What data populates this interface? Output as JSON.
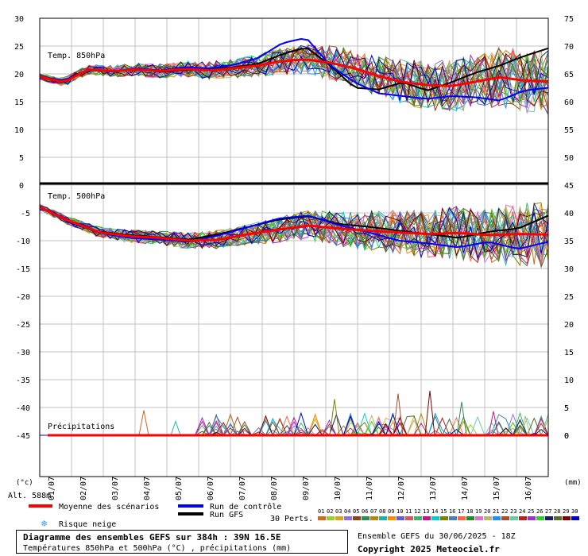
{
  "chart_data": [
    {
      "panel": "850hPa",
      "type": "line",
      "label": "Temp. 850hPa",
      "y_left_ticks": [
        30,
        25,
        20,
        15,
        10,
        5,
        0
      ],
      "y_right_ticks": [
        75,
        70,
        65,
        60,
        55,
        50
      ],
      "ylim": [
        0,
        30
      ],
      "mean_series": [
        19.5,
        18.5,
        20.8,
        20.5,
        20.8,
        20.5,
        20.9,
        20.6,
        21,
        21.5,
        22.3,
        22.6,
        22,
        21,
        19.6,
        18.5,
        18,
        17.8,
        18.6,
        19.4,
        18.8,
        18.6
      ],
      "control_series": [
        19.5,
        18.8,
        20.7,
        20.4,
        21,
        20.6,
        21.2,
        21,
        21.6,
        22.8,
        25.5,
        26.5,
        21.5,
        18.5,
        16.5,
        16,
        15.5,
        16,
        15.8,
        15.2,
        17,
        17.5
      ],
      "gfs_series": [
        19.5,
        18.8,
        20.8,
        20.5,
        20.8,
        20.4,
        20.7,
        20.8,
        21.2,
        21.8,
        23.5,
        24.8,
        21.5,
        17.5,
        17.2,
        18.5,
        17,
        18.5,
        20.2,
        21.5,
        23.2,
        24.6
      ]
    },
    {
      "panel": "500hPa",
      "type": "line",
      "label": "Temp. 500hPa",
      "y_left_ticks": [
        -5,
        -10,
        -15,
        -20,
        -25,
        -30,
        -35,
        -40,
        -45
      ],
      "y_right_ticks": [
        45,
        40,
        35,
        30,
        25,
        20,
        15,
        10,
        5,
        0
      ],
      "ylim": [
        -49,
        0
      ],
      "mean_series": [
        -4,
        -6.5,
        -8.5,
        -9.2,
        -9.5,
        -10,
        -9.8,
        -8.8,
        -8,
        -7.3,
        -7.8,
        -8.2,
        -8.5,
        -8.8,
        -8.6,
        -9,
        -8.8,
        -8.9
      ],
      "control_series": [
        -4,
        -6.7,
        -8.6,
        -9.5,
        -9.8,
        -10.2,
        -9,
        -7.5,
        -6,
        -5.5,
        -7.2,
        -8.5,
        -10,
        -10.5,
        -11.2,
        -10.2,
        -11.5,
        -10.2
      ],
      "gfs_series": [
        -4,
        -6.5,
        -8.4,
        -9,
        -9.4,
        -9.8,
        -8.8,
        -7.5,
        -6.2,
        -5.6,
        -7,
        -7.5,
        -8.2,
        -8.8,
        -9.5,
        -8.4,
        -7.8,
        -5.5
      ]
    },
    {
      "panel": "precip",
      "type": "line",
      "label": "Précipitations",
      "y_right_ticks": [
        5,
        0
      ],
      "unit": "(mm)",
      "spikes": [
        {
          "date": "04/07",
          "value": 4.5
        },
        {
          "date": "05/07",
          "value": 2.5
        },
        {
          "date": "10/07",
          "value": 6.5
        },
        {
          "date": "12/07",
          "value": 7.5
        },
        {
          "date": "13/07",
          "value": 8
        },
        {
          "date": "14/07",
          "value": 6
        },
        {
          "date": "15/07",
          "value": 4.3
        },
        {
          "date": "16/07",
          "value": 3.5
        }
      ]
    }
  ],
  "x_axis": {
    "dates": [
      "01/07",
      "02/07",
      "03/07",
      "04/07",
      "05/07",
      "06/07",
      "07/07",
      "08/07",
      "09/07",
      "10/07",
      "11/07",
      "12/07",
      "13/07",
      "14/07",
      "15/07",
      "16/07"
    ],
    "left_unit": "(°c)",
    "right_unit": "(mm)",
    "alt_label": "Alt. 588m"
  },
  "legend": {
    "mean": "Moyenne des scénarios",
    "control": "Run de contrôle",
    "gfs": "Run GFS",
    "snow": "Risque neige",
    "perts": "30 Perts.",
    "pert_numbers": [
      "01",
      "02",
      "03",
      "04",
      "05",
      "06",
      "07",
      "08",
      "09",
      "10",
      "11",
      "12",
      "13",
      "14",
      "15",
      "16",
      "17",
      "18",
      "19",
      "20",
      "21",
      "22",
      "23",
      "24",
      "25",
      "26",
      "27",
      "28",
      "29",
      "30"
    ],
    "pert_colors": [
      "#d2691e",
      "#9acd32",
      "#daa520",
      "#9370db",
      "#8b4513",
      "#2e8b57",
      "#b8860b",
      "#20b2aa",
      "#ff8c00",
      "#6a5acd",
      "#cd5c5c",
      "#3cb371",
      "#c71585",
      "#00ced1",
      "#808000",
      "#4682b4",
      "#ff6347",
      "#228b22",
      "#da70d6",
      "#bdb76b",
      "#1e90ff",
      "#a0522d",
      "#66cdaa",
      "#b22222",
      "#9932cc",
      "#32cd32",
      "#191970",
      "#556b2f",
      "#800000",
      "#0000cd"
    ]
  },
  "colors": {
    "mean": "#ff0000",
    "control": "#0000ff",
    "gfs": "#000000",
    "grid": "#c0c0c0",
    "snow": "#3399ff"
  },
  "footer": {
    "title": "Diagramme des ensembles GEFS sur 384h : 39N 16.5E",
    "subtitle": "Températures 850hPa et 500hPa (°C) , précipitations (mm)",
    "run": "Ensemble GEFS du 30/06/2025 - 18Z",
    "copyright": "Copyright 2025 Meteociel.fr"
  }
}
